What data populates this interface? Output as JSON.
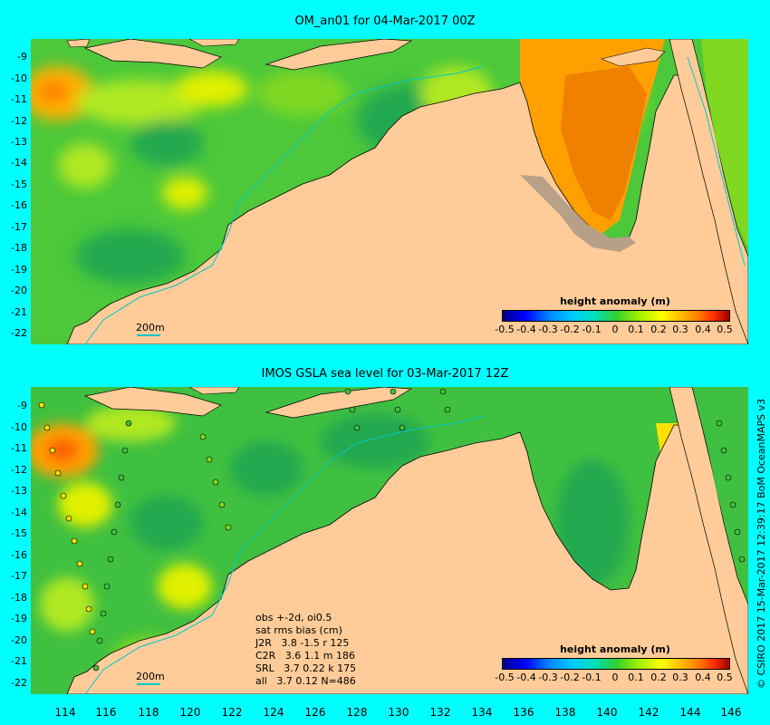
{
  "top_panel": {
    "title": "OM_an01 for 04-Mar-2017 00Z",
    "scale_label": "200m"
  },
  "bottom_panel": {
    "title": "IMOS GSLA sea level  for 03-Mar-2017 12Z",
    "scale_label": "200m",
    "stats": [
      "obs +-2d, oi0.5",
      "sat rms bias (cm)",
      "J2R   3.8 -1.5 r 125",
      "C2R   3.6 1.1 m 186",
      "SRL   3.7 0.22 k 175",
      "all   3.7 0.12 N=486"
    ]
  },
  "latitude_labels": [
    "-9",
    "-10",
    "-11",
    "-12",
    "-13",
    "-14",
    "-15",
    "-16",
    "-17",
    "-18",
    "-19",
    "-20",
    "-21",
    "-22"
  ],
  "longitude_labels": [
    "114",
    "116",
    "118",
    "120",
    "122",
    "124",
    "126",
    "128",
    "130",
    "132",
    "134",
    "136",
    "138",
    "140",
    "142",
    "144",
    "146"
  ],
  "legend": {
    "title": "height anomaly (m)",
    "ticks": [
      "-0.5",
      "-0.4",
      "-0.3",
      "-0.2",
      "-0.1",
      "0",
      "0.1",
      "0.2",
      "0.3",
      "0.4",
      "0.5"
    ],
    "colors": [
      "#00008b",
      "#0000ff",
      "#0080ff",
      "#00c8ff",
      "#00e0c0",
      "#00c040",
      "#30d030",
      "#a0f000",
      "#ffff00",
      "#ffc000",
      "#ff8000",
      "#ff3000",
      "#a00000"
    ]
  },
  "colors": {
    "background": "#00ffff",
    "land": "#ffcc99",
    "shelf_land": "#c0a080",
    "sea_green": "#30c030",
    "bathymetry_contour": "#00c8c8"
  },
  "credit": "© CSIRO 2017  15-Mar-2017 12:39:17 BoM OceanMAPS v3"
}
